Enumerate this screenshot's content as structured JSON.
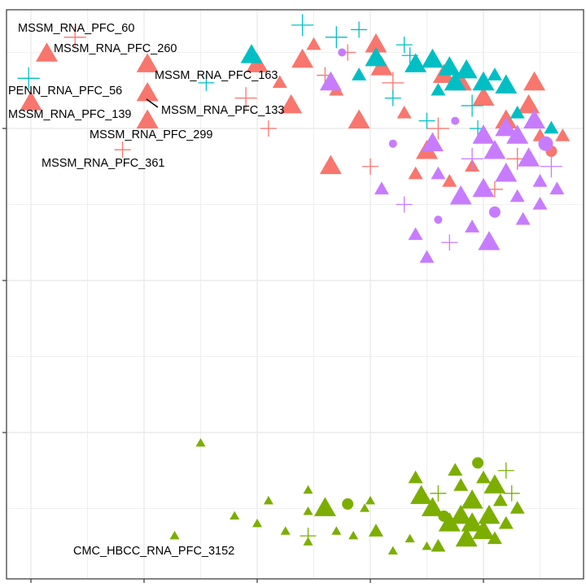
{
  "chart_data": {
    "type": "scatter",
    "title": "",
    "xlabel": "",
    "ylabel": "",
    "xlim": [
      -0.22,
      4.88
    ],
    "ylim": [
      -0.96,
      2.78
    ],
    "grid": true,
    "x_major_ticks": [
      0,
      1,
      2,
      3,
      4
    ],
    "y_major_ticks": [
      0,
      1,
      2
    ],
    "legend": "none",
    "colors": {
      "group1": "#F8766D",
      "group2": "#00BFC4",
      "group3": "#C77CFF",
      "group4": "#7CAE00"
    },
    "point_format": "[x, y, shape(t=triangle,p=plus,c=circle), size(1-3)]",
    "series": [
      {
        "name": "group1",
        "color": "#F8766D",
        "points": [
          [
            2.0,
            2.42,
            "t",
            3
          ],
          [
            2.4,
            2.45,
            "t",
            3
          ],
          [
            2.6,
            2.35,
            "p",
            2
          ],
          [
            2.3,
            2.15,
            "t",
            3
          ],
          [
            2.7,
            2.25,
            "t",
            2
          ],
          [
            2.9,
            2.05,
            "t",
            3
          ],
          [
            3.1,
            2.4,
            "t",
            3
          ],
          [
            3.3,
            2.1,
            "t",
            2
          ],
          [
            3.5,
            1.85,
            "t",
            3
          ],
          [
            2.1,
            2.0,
            "p",
            2
          ],
          [
            1.9,
            2.2,
            "p",
            3
          ],
          [
            3.0,
            1.75,
            "p",
            2
          ],
          [
            3.8,
            2.3,
            "t",
            3
          ],
          [
            3.6,
            2.0,
            "p",
            3
          ],
          [
            4.0,
            2.2,
            "t",
            3
          ],
          [
            4.2,
            2.05,
            "t",
            3
          ],
          [
            4.4,
            2.15,
            "t",
            3
          ],
          [
            4.5,
            1.95,
            "t",
            2
          ],
          [
            4.3,
            1.8,
            "p",
            3
          ],
          [
            3.9,
            1.75,
            "t",
            2
          ],
          [
            4.6,
            1.85,
            "c",
            2
          ],
          [
            3.7,
            1.65,
            "t",
            2
          ],
          [
            4.1,
            1.6,
            "p",
            2
          ],
          [
            3.4,
            1.7,
            "t",
            2
          ],
          [
            4.45,
            2.3,
            "t",
            3
          ],
          [
            3.2,
            2.3,
            "p",
            3
          ],
          [
            2.5,
            2.55,
            "t",
            2
          ],
          [
            2.8,
            2.5,
            "p",
            2
          ],
          [
            4.7,
            1.95,
            "t",
            2
          ],
          [
            3.65,
            2.35,
            "t",
            3
          ],
          [
            2.2,
            2.3,
            "t",
            2
          ],
          [
            3.05,
            2.55,
            "t",
            3
          ],
          [
            2.65,
            1.75,
            "t",
            3
          ],
          [
            0.39,
            2.6,
            "p",
            3
          ],
          [
            0.14,
            2.49,
            "t",
            3
          ],
          [
            1.03,
            2.42,
            "t",
            3
          ],
          [
            0.0,
            2.17,
            "t",
            3
          ],
          [
            1.03,
            2.23,
            "t",
            3
          ],
          [
            1.03,
            2.05,
            "t",
            3
          ],
          [
            0.81,
            1.86,
            "p",
            2
          ]
        ]
      },
      {
        "name": "group2",
        "color": "#00BFC4",
        "points": [
          [
            1.95,
            2.48,
            "t",
            3
          ],
          [
            2.4,
            2.68,
            "p",
            3
          ],
          [
            2.7,
            2.6,
            "p",
            3
          ],
          [
            2.9,
            2.65,
            "p",
            2
          ],
          [
            3.05,
            2.46,
            "t",
            3
          ],
          [
            3.3,
            2.55,
            "p",
            2
          ],
          [
            3.4,
            2.42,
            "t",
            3
          ],
          [
            3.55,
            2.45,
            "t",
            3
          ],
          [
            3.7,
            2.4,
            "t",
            3
          ],
          [
            3.85,
            2.38,
            "t",
            3
          ],
          [
            4.0,
            2.3,
            "t",
            3
          ],
          [
            4.1,
            2.35,
            "t",
            2
          ],
          [
            3.6,
            2.25,
            "t",
            2
          ],
          [
            3.9,
            2.15,
            "p",
            3
          ],
          [
            4.3,
            2.1,
            "t",
            2
          ],
          [
            4.6,
            2.0,
            "t",
            2
          ],
          [
            3.2,
            2.2,
            "p",
            2
          ],
          [
            3.5,
            2.05,
            "p",
            2
          ],
          [
            4.2,
            2.28,
            "t",
            3
          ],
          [
            3.75,
            2.3,
            "t",
            3
          ],
          [
            1.55,
            2.3,
            "p",
            2
          ],
          [
            2.9,
            2.35,
            "t",
            2
          ],
          [
            3.35,
            2.48,
            "p",
            2
          ],
          [
            4.45,
            2.05,
            "t",
            2
          ],
          [
            3.95,
            2.0,
            "p",
            2
          ],
          [
            -0.02,
            2.33,
            "p",
            3
          ]
        ]
      },
      {
        "name": "group3",
        "color": "#C77CFF",
        "points": [
          [
            3.1,
            1.6,
            "t",
            2
          ],
          [
            3.3,
            1.5,
            "p",
            2
          ],
          [
            3.4,
            1.3,
            "t",
            2
          ],
          [
            3.5,
            1.15,
            "t",
            2
          ],
          [
            3.6,
            1.4,
            "c",
            1
          ],
          [
            3.7,
            1.25,
            "p",
            2
          ],
          [
            3.8,
            1.55,
            "t",
            3
          ],
          [
            3.9,
            1.35,
            "t",
            2
          ],
          [
            4.0,
            1.6,
            "t",
            3
          ],
          [
            4.1,
            1.45,
            "c",
            2
          ],
          [
            4.2,
            1.7,
            "t",
            3
          ],
          [
            4.3,
            1.55,
            "t",
            2
          ],
          [
            4.4,
            1.8,
            "t",
            3
          ],
          [
            4.5,
            1.65,
            "t",
            2
          ],
          [
            4.6,
            1.75,
            "p",
            3
          ],
          [
            4.3,
            1.95,
            "t",
            3
          ],
          [
            4.45,
            2.05,
            "t",
            3
          ],
          [
            4.1,
            1.85,
            "t",
            3
          ],
          [
            3.9,
            1.8,
            "p",
            3
          ],
          [
            3.6,
            1.7,
            "t",
            2
          ],
          [
            4.55,
            1.9,
            "c",
            3
          ],
          [
            4.65,
            1.6,
            "t",
            2
          ],
          [
            3.2,
            1.9,
            "c",
            1
          ],
          [
            2.65,
            2.3,
            "t",
            3
          ],
          [
            2.75,
            2.5,
            "c",
            1
          ],
          [
            4.05,
            1.25,
            "t",
            3
          ],
          [
            3.55,
            1.9,
            "t",
            3
          ],
          [
            4.35,
            1.4,
            "t",
            2
          ],
          [
            4.2,
            2.0,
            "t",
            3
          ],
          [
            3.75,
            2.05,
            "c",
            1
          ],
          [
            4.0,
            1.95,
            "t",
            3
          ],
          [
            4.5,
            1.5,
            "t",
            2
          ]
        ]
      },
      {
        "name": "group4",
        "color": "#7CAE00",
        "points": [
          [
            1.5,
            -0.07,
            "t",
            1
          ],
          [
            1.27,
            -0.68,
            "t",
            1
          ],
          [
            1.8,
            -0.55,
            "t",
            1
          ],
          [
            2.0,
            -0.6,
            "t",
            1
          ],
          [
            2.1,
            -0.45,
            "t",
            1
          ],
          [
            2.45,
            -0.38,
            "t",
            1
          ],
          [
            2.45,
            -0.52,
            "t",
            1
          ],
          [
            2.6,
            -0.5,
            "t",
            3
          ],
          [
            2.8,
            -0.47,
            "c",
            2
          ],
          [
            2.95,
            -0.5,
            "t",
            1
          ],
          [
            3.0,
            -0.45,
            "t",
            1
          ],
          [
            2.45,
            -0.72,
            "t",
            1
          ],
          [
            2.45,
            -0.68,
            "p",
            2
          ],
          [
            2.25,
            -0.65,
            "t",
            1
          ],
          [
            2.7,
            -0.65,
            "t",
            1
          ],
          [
            2.85,
            -0.68,
            "t",
            1
          ],
          [
            3.05,
            -0.65,
            "t",
            2
          ],
          [
            3.35,
            -0.7,
            "t",
            1
          ],
          [
            3.5,
            -0.75,
            "t",
            1
          ],
          [
            3.2,
            -0.78,
            "t",
            1
          ],
          [
            3.4,
            -0.3,
            "t",
            2
          ],
          [
            3.45,
            -0.42,
            "t",
            3
          ],
          [
            3.6,
            -0.4,
            "p",
            2
          ],
          [
            3.65,
            -0.55,
            "c",
            2
          ],
          [
            3.8,
            -0.35,
            "t",
            2
          ],
          [
            3.9,
            -0.45,
            "t",
            3
          ],
          [
            4.0,
            -0.3,
            "t",
            2
          ],
          [
            4.05,
            -0.55,
            "t",
            3
          ],
          [
            4.15,
            -0.45,
            "t",
            2
          ],
          [
            4.25,
            -0.4,
            "p",
            2
          ],
          [
            4.3,
            -0.5,
            "t",
            2
          ],
          [
            3.7,
            -0.6,
            "t",
            3
          ],
          [
            3.85,
            -0.7,
            "t",
            3
          ],
          [
            4.0,
            -0.65,
            "t",
            3
          ],
          [
            4.2,
            -0.6,
            "t",
            2
          ],
          [
            3.6,
            -0.75,
            "t",
            2
          ],
          [
            3.95,
            -0.2,
            "c",
            2
          ],
          [
            4.2,
            -0.25,
            "p",
            2
          ],
          [
            3.75,
            -0.25,
            "t",
            2
          ],
          [
            3.55,
            -0.5,
            "t",
            3
          ],
          [
            4.1,
            -0.7,
            "t",
            2
          ],
          [
            3.8,
            -0.55,
            "t",
            3
          ],
          [
            3.9,
            -0.6,
            "t",
            3
          ],
          [
            4.1,
            -0.35,
            "t",
            3
          ]
        ]
      }
    ],
    "annotations": [
      {
        "text": "MSSM_RNA_PFC_60",
        "x": 0.39,
        "y": 2.6
      },
      {
        "text": "MSSM_RNA_PFC_260",
        "x": 0.14,
        "y": 2.49
      },
      {
        "text": "MSSM_RNA_PFC_163",
        "x": 1.03,
        "y": 2.42
      },
      {
        "text": "PENN_RNA_PFC_56",
        "x": -0.02,
        "y": 2.33
      },
      {
        "text": "MSSM_RNA_PFC_139",
        "x": 0.0,
        "y": 2.17
      },
      {
        "text": "MSSM_RNA_PFC_133",
        "x": 1.03,
        "y": 2.23
      },
      {
        "text": "MSSM_RNA_PFC_299",
        "x": 1.03,
        "y": 2.05
      },
      {
        "text": "MSSM_RNA_PFC_361",
        "x": 0.81,
        "y": 1.86
      },
      {
        "text": "CMC_HBCC_RNA_PFC_3152",
        "x": 1.27,
        "y": -0.68
      }
    ]
  }
}
